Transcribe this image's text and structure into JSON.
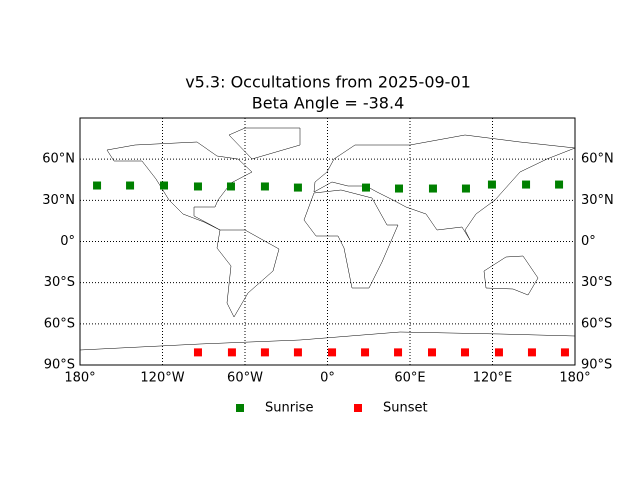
{
  "chart_data": {
    "type": "scatter",
    "title": "v5.3: Occultations from 2025-09-01",
    "subtitle": "Beta Angle = -38.4",
    "xlim": [
      -180,
      180
    ],
    "ylim": [
      -90,
      90
    ],
    "xticks": [
      {
        "value": -180,
        "label": "180°"
      },
      {
        "value": -120,
        "label": "120°W"
      },
      {
        "value": -60,
        "label": "60°W"
      },
      {
        "value": 0,
        "label": "0°"
      },
      {
        "value": 60,
        "label": "60°E"
      },
      {
        "value": 120,
        "label": "120°E"
      },
      {
        "value": 180,
        "label": "180°"
      }
    ],
    "yticks": [
      {
        "value": -90,
        "label": "90°S"
      },
      {
        "value": -60,
        "label": "60°S"
      },
      {
        "value": -30,
        "label": "30°S"
      },
      {
        "value": 0,
        "label": "0°"
      },
      {
        "value": 30,
        "label": "30°N"
      },
      {
        "value": 60,
        "label": "60°N"
      }
    ],
    "grid": true,
    "legend": "lower center",
    "series": [
      {
        "name": "Sunrise",
        "color": "#008000",
        "x": [
          -167.6,
          -143.6,
          -118.9,
          -94.2,
          -70.2,
          -45.5,
          -21.5,
          28.0,
          52.0,
          76.7,
          100.7,
          119.6,
          144.4,
          168.4
        ],
        "y": [
          40.8,
          40.8,
          40.8,
          40.1,
          40.1,
          40.1,
          39.3,
          39.3,
          38.6,
          38.6,
          38.6,
          41.5,
          41.5,
          41.5
        ]
      },
      {
        "name": "Sunset",
        "color": "#ff0000",
        "x": [
          -94.2,
          -69.5,
          -45.5,
          -21.5,
          3.3,
          27.3,
          51.3,
          76.0,
          100.0,
          124.7,
          148.7,
          172.7
        ],
        "y": [
          -80.8,
          -80.8,
          -80.8,
          -80.8,
          -80.8,
          -80.8,
          -80.8,
          -80.8,
          -80.8,
          -80.8,
          -80.8,
          -80.8
        ]
      }
    ]
  }
}
